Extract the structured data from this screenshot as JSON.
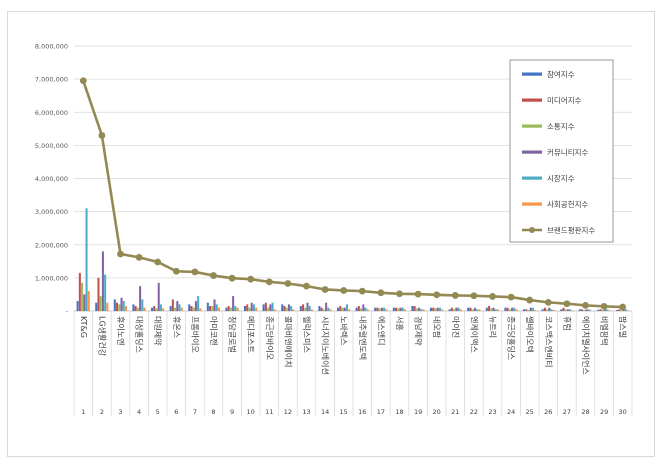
{
  "chart_data": {
    "type": "bar",
    "title": "",
    "xlabel": "",
    "ylabel": "",
    "ylim": [
      0,
      8000000
    ],
    "y_ticks": [
      0,
      1000000,
      2000000,
      3000000,
      4000000,
      5000000,
      6000000,
      7000000,
      8000000
    ],
    "y_tick_labels": [
      "-",
      "1,000,000",
      "2,000,000",
      "3,000,000",
      "4,000,000",
      "5,000,000",
      "6,000,000",
      "7,000,000",
      "8,000,000"
    ],
    "grid": true,
    "legend_position": "top-right",
    "ranks": [
      "1",
      "2",
      "3",
      "4",
      "5",
      "6",
      "7",
      "8",
      "9",
      "10",
      "11",
      "12",
      "13",
      "14",
      "15",
      "16",
      "17",
      "18",
      "19",
      "20",
      "21",
      "22",
      "23",
      "24",
      "25",
      "26",
      "27",
      "28",
      "29",
      "30"
    ],
    "categories": [
      "KT&G",
      "LG생활건강",
      "휴이노엔",
      "대상홀딩스",
      "대원제약",
      "휴온스",
      "프롬바이오",
      "아미코젠",
      "청담글로벌",
      "메디포스트",
      "종근당바이오",
      "콜마비앤에이치",
      "헬릭스미스",
      "시너지이노베이션",
      "노바렉스",
      "내추럴엔도텍",
      "에스앤디",
      "서흥",
      "경남제약",
      "네오팜",
      "아이진",
      "엔케이맥스",
      "뉴트리",
      "종근당홀딩스",
      "쎌바이오텍",
      "코스맥스엔비티",
      "휴럼",
      "에이치엘사이언스",
      "비엘팜텍",
      "팜스빌"
    ],
    "series": [
      {
        "name": "참여지수",
        "color": "#4472c4",
        "type": "bar",
        "values": [
          300000,
          250000,
          350000,
          200000,
          100000,
          150000,
          200000,
          250000,
          100000,
          150000,
          200000,
          200000,
          150000,
          150000,
          100000,
          100000,
          100000,
          100000,
          150000,
          100000,
          50000,
          100000,
          100000,
          100000,
          50000,
          50000,
          50000,
          50000,
          40000,
          30000
        ]
      },
      {
        "name": "미디어지수",
        "color": "#c0504d",
        "type": "bar",
        "values": [
          1150000,
          1000000,
          250000,
          150000,
          150000,
          350000,
          150000,
          150000,
          150000,
          200000,
          250000,
          150000,
          200000,
          100000,
          150000,
          150000,
          100000,
          100000,
          150000,
          100000,
          100000,
          100000,
          150000,
          100000,
          50000,
          100000,
          100000,
          50000,
          50000,
          50000
        ]
      },
      {
        "name": "소통지수",
        "color": "#9bbb59",
        "type": "bar",
        "values": [
          850000,
          450000,
          200000,
          100000,
          80000,
          100000,
          100000,
          150000,
          100000,
          100000,
          100000,
          100000,
          100000,
          50000,
          100000,
          80000,
          80000,
          80000,
          80000,
          80000,
          50000,
          50000,
          80000,
          50000,
          30000,
          50000,
          50000,
          30000,
          30000,
          20000
        ]
      },
      {
        "name": "커뮤니티지수",
        "color": "#8064a2",
        "type": "bar",
        "values": [
          500000,
          1800000,
          400000,
          750000,
          850000,
          300000,
          300000,
          350000,
          450000,
          250000,
          200000,
          200000,
          250000,
          250000,
          100000,
          200000,
          100000,
          100000,
          100000,
          100000,
          100000,
          100000,
          100000,
          100000,
          100000,
          100000,
          50000,
          50000,
          50000,
          50000
        ]
      },
      {
        "name": "시장지수",
        "color": "#4bacc6",
        "type": "bar",
        "values": [
          3100000,
          1100000,
          300000,
          350000,
          200000,
          200000,
          450000,
          200000,
          150000,
          200000,
          250000,
          150000,
          150000,
          100000,
          200000,
          100000,
          100000,
          100000,
          50000,
          100000,
          100000,
          50000,
          50000,
          100000,
          100000,
          50000,
          50000,
          50000,
          50000,
          50000
        ]
      },
      {
        "name": "사회공헌지수",
        "color": "#f79646",
        "type": "bar",
        "values": [
          600000,
          250000,
          150000,
          100000,
          80000,
          100000,
          80000,
          100000,
          100000,
          100000,
          50000,
          50000,
          50000,
          50000,
          50000,
          50000,
          50000,
          50000,
          50000,
          50000,
          50000,
          50000,
          50000,
          50000,
          30000,
          30000,
          20000,
          20000,
          20000,
          20000
        ]
      },
      {
        "name": "브랜드평판지수",
        "color": "#938953",
        "type": "line",
        "values": [
          6950000,
          5300000,
          1720000,
          1620000,
          1480000,
          1200000,
          1180000,
          1070000,
          990000,
          960000,
          880000,
          830000,
          750000,
          650000,
          620000,
          600000,
          550000,
          520000,
          510000,
          490000,
          470000,
          460000,
          440000,
          420000,
          330000,
          260000,
          220000,
          170000,
          140000,
          120000
        ]
      }
    ]
  }
}
